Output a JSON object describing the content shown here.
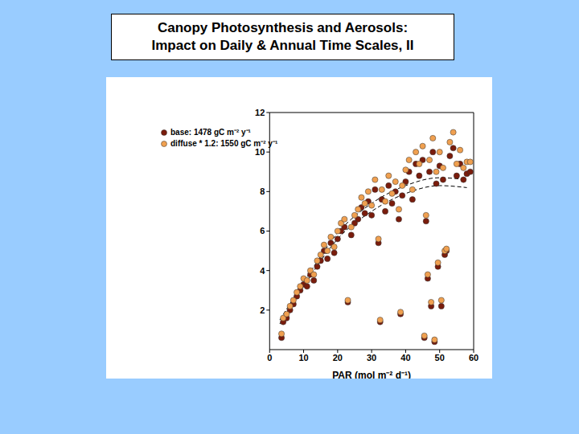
{
  "chart_data": {
    "type": "scatter",
    "title": "Canopy Photosynthesis and Aerosols:\nImpact on Daily & Annual Time Scales, II",
    "x_label": "PAR (mol m⁻² d⁻¹)",
    "xlim": [
      0,
      60
    ],
    "xticks": [
      0,
      10,
      20,
      30,
      40,
      50,
      60
    ],
    "ylim": [
      0,
      12
    ],
    "yticks": [
      2,
      4,
      6,
      8,
      10,
      12
    ],
    "grid": false,
    "legend": "upper left",
    "series": [
      {
        "name": "base: 1478 gC m⁻² y⁻¹",
        "color": "#7a1c0c",
        "marker": "circle",
        "x": [
          3.5,
          4,
          5,
          6,
          7,
          8,
          9,
          10,
          11,
          12,
          13,
          14,
          15,
          16,
          17,
          18,
          19,
          20,
          21,
          22,
          23,
          24,
          25,
          26,
          27,
          28,
          29,
          30,
          31,
          32,
          32.5,
          33,
          34,
          35,
          36,
          37,
          38,
          38.5,
          39,
          40,
          41,
          42,
          43,
          44,
          45,
          45.5,
          46,
          46.5,
          47,
          47.5,
          48,
          48.5,
          49,
          49.5,
          50,
          50.5,
          51,
          51.5,
          52,
          53,
          54,
          55,
          56,
          57,
          58,
          59
        ],
        "values": [
          0.6,
          1.4,
          1.6,
          2.0,
          2.3,
          2.7,
          3.0,
          3.3,
          3.2,
          3.8,
          3.5,
          4.2,
          4.5,
          5.0,
          4.6,
          5.4,
          4.9,
          5.6,
          6.0,
          6.2,
          2.4,
          5.8,
          6.4,
          6.6,
          7.2,
          6.9,
          7.5,
          6.8,
          8.1,
          5.4,
          1.4,
          7.6,
          7.0,
          8.3,
          7.4,
          8.0,
          6.6,
          1.8,
          7.8,
          8.5,
          9.0,
          7.6,
          9.4,
          8.8,
          9.6,
          0.6,
          6.5,
          3.6,
          9.0,
          2.2,
          10.0,
          0.4,
          8.4,
          4.2,
          9.3,
          2.2,
          8.6,
          4.8,
          5.0,
          9.8,
          10.2,
          8.8,
          9.4,
          8.6,
          8.9,
          9.0
        ]
      },
      {
        "name": "diffuse * 1.2: 1550 gC m⁻² y⁻¹",
        "color": "#f0a050",
        "marker": "circle",
        "x": [
          3.5,
          4,
          5,
          6,
          7,
          8,
          9,
          10,
          11,
          12,
          13,
          14,
          15,
          16,
          17,
          18,
          19,
          20,
          21,
          22,
          23,
          24,
          25,
          26,
          27,
          28,
          29,
          30,
          31,
          32,
          32.5,
          33,
          34,
          35,
          36,
          37,
          38,
          38.5,
          39,
          40,
          41,
          42,
          43,
          44,
          45,
          45.5,
          46,
          46.5,
          47,
          47.5,
          48,
          48.5,
          49,
          49.5,
          50,
          50.5,
          51,
          51.5,
          52,
          53,
          54,
          55,
          56,
          57,
          58,
          59
        ],
        "values": [
          0.8,
          1.6,
          1.8,
          2.2,
          2.5,
          2.9,
          3.2,
          3.6,
          3.5,
          4.0,
          3.8,
          4.5,
          4.8,
          5.3,
          5.0,
          5.7,
          5.2,
          6.0,
          6.4,
          6.6,
          2.5,
          6.2,
          6.8,
          7.1,
          7.7,
          7.4,
          8.0,
          7.3,
          8.6,
          5.6,
          1.5,
          8.1,
          7.5,
          8.8,
          7.9,
          8.5,
          7.1,
          1.9,
          8.3,
          9.1,
          9.6,
          8.1,
          10.0,
          9.4,
          10.3,
          0.7,
          6.8,
          3.8,
          9.6,
          2.4,
          10.7,
          0.5,
          9.0,
          4.4,
          10.0,
          2.5,
          9.2,
          5.0,
          5.1,
          10.5,
          11.0,
          9.4,
          10.1,
          9.2,
          9.5,
          9.5
        ]
      },
      {
        "type": "line",
        "color": "#000000",
        "line_style": "dashed",
        "x": [
          3,
          10,
          20,
          30,
          40,
          50,
          58
        ],
        "values": [
          1.3,
          3.2,
          5.6,
          7.0,
          7.9,
          8.3,
          8.2
        ]
      },
      {
        "type": "line",
        "color": "#000000",
        "line_style": "dashed",
        "x": [
          3,
          10,
          20,
          30,
          40,
          50,
          58
        ],
        "values": [
          1.5,
          3.4,
          5.9,
          7.4,
          8.3,
          8.7,
          8.6
        ]
      }
    ]
  }
}
